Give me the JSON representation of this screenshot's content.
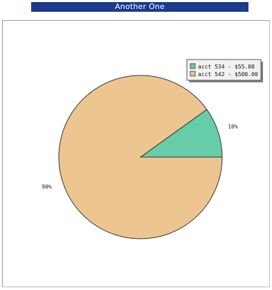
{
  "header": {
    "title": "Another One"
  },
  "chart_data": {
    "type": "pie",
    "slices": [
      {
        "label": "acct 534 - $55.00",
        "value": 55.0,
        "percent_label": "10%",
        "color": "#66cdaa"
      },
      {
        "label": "acct 542 - $500.00",
        "value": 500.0,
        "percent_label": "90%",
        "color": "#ecc591"
      }
    ],
    "legend_position": "top-right",
    "edge_color": "#333333"
  }
}
